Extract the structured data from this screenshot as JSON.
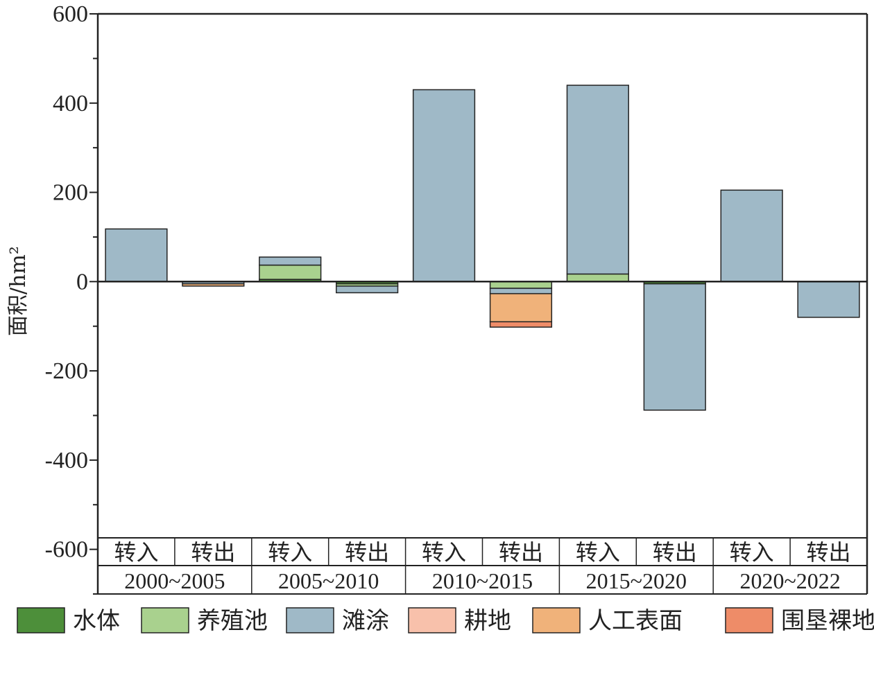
{
  "chart_data": {
    "type": "bar",
    "stacked": true,
    "title": "",
    "xlabel": "",
    "ylabel": "面积/hm²",
    "ylim": [
      -700,
      600
    ],
    "yticks": [
      600,
      400,
      200,
      0,
      -200,
      -400,
      -600
    ],
    "grid": false,
    "legend_position": "bottom",
    "categories": [
      "转入",
      "转出",
      "转入",
      "转出",
      "转入",
      "转出",
      "转入",
      "转出",
      "转入",
      "转出"
    ],
    "groups": [
      "2000~2005",
      "2005~2010",
      "2010~2015",
      "2015~2020",
      "2020~2022"
    ],
    "series": [
      {
        "name": "水体",
        "color": "#4d8f3a",
        "values": [
          0,
          0,
          5,
          -5,
          0,
          0,
          0,
          -5,
          0,
          0
        ]
      },
      {
        "name": "养殖池",
        "color": "#a9d18e",
        "values": [
          0,
          0,
          32,
          -5,
          0,
          -15,
          17,
          0,
          0,
          0
        ]
      },
      {
        "name": "滩涂",
        "color": "#9fb9c7",
        "values": [
          118,
          -5,
          18,
          -15,
          430,
          -12,
          423,
          -283,
          205,
          -80
        ]
      },
      {
        "name": "耕地",
        "color": "#f8c1ab",
        "values": [
          0,
          0,
          0,
          0,
          0,
          0,
          0,
          0,
          0,
          0
        ]
      },
      {
        "name": "人工表面",
        "color": "#f0b27a",
        "values": [
          0,
          -5,
          0,
          0,
          0,
          -63,
          0,
          0,
          0,
          0
        ]
      },
      {
        "name": "围垦裸地",
        "color": "#ee8c68",
        "values": [
          0,
          0,
          0,
          0,
          0,
          -12,
          0,
          0,
          0,
          0
        ]
      }
    ]
  }
}
